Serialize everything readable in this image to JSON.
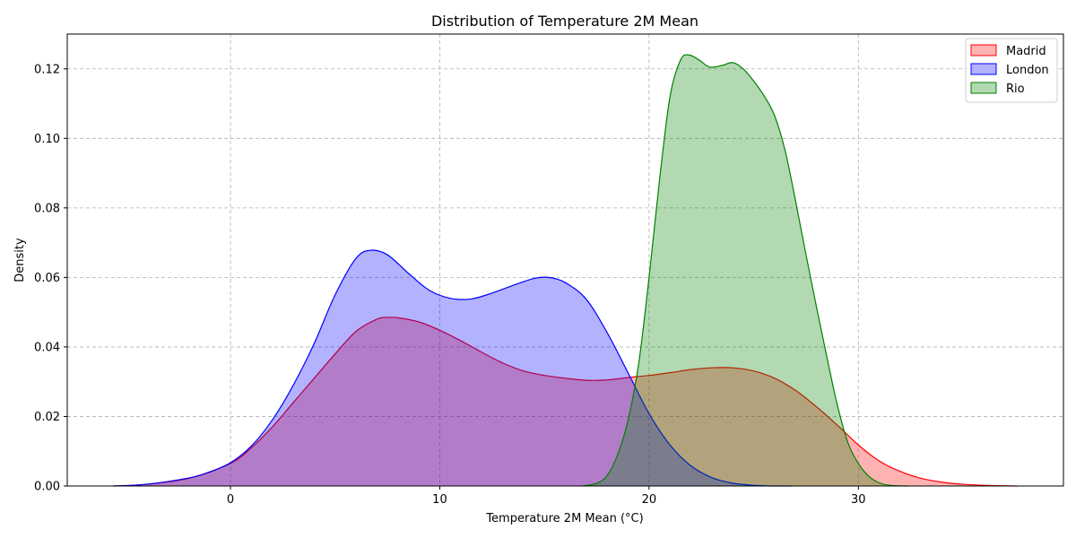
{
  "chart_data": {
    "type": "area",
    "title": "Distribution of Temperature 2M Mean",
    "xlabel": "Temperature 2M Mean (°C)",
    "ylabel": "Density",
    "xlim": [
      -7.8,
      39.8
    ],
    "ylim": [
      0,
      0.13
    ],
    "x_ticks": [
      0,
      10,
      20,
      30
    ],
    "y_ticks": [
      0.0,
      0.02,
      0.04,
      0.06,
      0.08,
      0.1,
      0.12
    ],
    "x_tick_labels": [
      "0",
      "10",
      "20",
      "30"
    ],
    "y_tick_labels": [
      "0.00",
      "0.02",
      "0.04",
      "0.06",
      "0.08",
      "0.10",
      "0.12"
    ],
    "grid": true,
    "legend_position": "top-right",
    "series": [
      {
        "name": "Madrid",
        "color": "#ff0000",
        "fill": "#ff0000",
        "points": [
          [
            -5.6,
            0.0
          ],
          [
            -4,
            0.0005
          ],
          [
            -2,
            0.0022
          ],
          [
            0,
            0.0065
          ],
          [
            1,
            0.011
          ],
          [
            2,
            0.017
          ],
          [
            3,
            0.024
          ],
          [
            4,
            0.031
          ],
          [
            5,
            0.038
          ],
          [
            6,
            0.0445
          ],
          [
            7,
            0.048
          ],
          [
            7.5,
            0.0485
          ],
          [
            8,
            0.0484
          ],
          [
            9,
            0.0472
          ],
          [
            10,
            0.0448
          ],
          [
            11,
            0.0418
          ],
          [
            12,
            0.0385
          ],
          [
            13,
            0.0354
          ],
          [
            14,
            0.0331
          ],
          [
            15,
            0.0318
          ],
          [
            16,
            0.031
          ],
          [
            17,
            0.0304
          ],
          [
            18,
            0.0305
          ],
          [
            19,
            0.0312
          ],
          [
            20,
            0.0318
          ],
          [
            21,
            0.0326
          ],
          [
            22,
            0.0335
          ],
          [
            23,
            0.034
          ],
          [
            24,
            0.034
          ],
          [
            25,
            0.0331
          ],
          [
            26,
            0.031
          ],
          [
            27,
            0.0275
          ],
          [
            28,
            0.0228
          ],
          [
            29,
            0.0175
          ],
          [
            30,
            0.0118
          ],
          [
            31,
            0.0072
          ],
          [
            32,
            0.0042
          ],
          [
            33,
            0.0022
          ],
          [
            34,
            0.0011
          ],
          [
            35,
            0.0005
          ],
          [
            36,
            0.0002
          ],
          [
            37.6,
            0.0
          ]
        ]
      },
      {
        "name": "London",
        "color": "#0000ff",
        "fill": "#0000ff",
        "points": [
          [
            -5.6,
            0.0
          ],
          [
            -4,
            0.0005
          ],
          [
            -2,
            0.0023
          ],
          [
            -1,
            0.004
          ],
          [
            0,
            0.0067
          ],
          [
            1,
            0.0115
          ],
          [
            2,
            0.019
          ],
          [
            3,
            0.029
          ],
          [
            4,
            0.041
          ],
          [
            5,
            0.055
          ],
          [
            6,
            0.0655
          ],
          [
            6.7,
            0.0678
          ],
          [
            7.5,
            0.0665
          ],
          [
            8.5,
            0.0612
          ],
          [
            9.5,
            0.0563
          ],
          [
            10.5,
            0.054
          ],
          [
            11.5,
            0.0538
          ],
          [
            12.5,
            0.0555
          ],
          [
            13.5,
            0.0577
          ],
          [
            14.5,
            0.0597
          ],
          [
            15.2,
            0.06
          ],
          [
            16,
            0.0585
          ],
          [
            17,
            0.0537
          ],
          [
            18,
            0.0441
          ],
          [
            19,
            0.0325
          ],
          [
            20,
            0.0208
          ],
          [
            21,
            0.0118
          ],
          [
            22,
            0.0058
          ],
          [
            23,
            0.0024
          ],
          [
            24,
            0.0008
          ],
          [
            25,
            0.0002
          ],
          [
            26,
            0.0
          ],
          [
            26.8,
            0.0
          ]
        ]
      },
      {
        "name": "Rio",
        "color": "#008000",
        "fill": "#008000",
        "points": [
          [
            16.8,
            0.0
          ],
          [
            17.5,
            0.0008
          ],
          [
            18,
            0.003
          ],
          [
            18.5,
            0.009
          ],
          [
            19,
            0.019
          ],
          [
            19.5,
            0.035
          ],
          [
            20,
            0.06
          ],
          [
            20.5,
            0.088
          ],
          [
            21,
            0.112
          ],
          [
            21.5,
            0.1225
          ],
          [
            21.9,
            0.124
          ],
          [
            22.4,
            0.1225
          ],
          [
            22.9,
            0.1205
          ],
          [
            23.5,
            0.121
          ],
          [
            24,
            0.1218
          ],
          [
            24.5,
            0.12
          ],
          [
            25,
            0.1165
          ],
          [
            25.5,
            0.1122
          ],
          [
            26,
            0.1065
          ],
          [
            26.5,
            0.0965
          ],
          [
            27,
            0.082
          ],
          [
            27.5,
            0.0665
          ],
          [
            28,
            0.0515
          ],
          [
            28.5,
            0.037
          ],
          [
            29,
            0.0232
          ],
          [
            29.5,
            0.0125
          ],
          [
            30,
            0.0065
          ],
          [
            30.5,
            0.0028
          ],
          [
            31,
            0.0009
          ],
          [
            31.5,
            0.0002
          ],
          [
            32.4,
            0.0
          ]
        ]
      }
    ]
  }
}
